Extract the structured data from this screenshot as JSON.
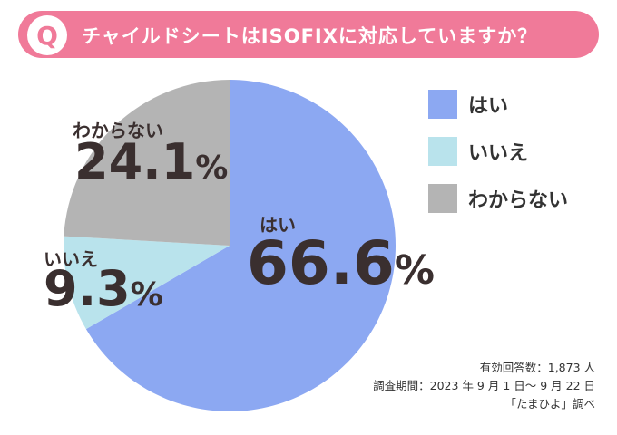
{
  "header": {
    "badge": "Q",
    "question": "チャイルドシートはISOFIXに対応していますか？"
  },
  "chart_data": {
    "type": "pie",
    "series": [
      {
        "name": "はい",
        "value": 66.6,
        "color": "#8ca8f2"
      },
      {
        "name": "いいえ",
        "value": 9.3,
        "color": "#b9e3ec"
      },
      {
        "name": "わからない",
        "value": 24.1,
        "color": "#b4b4b4"
      }
    ],
    "start_angle_deg": 0,
    "direction": "clockwise",
    "legend": "right",
    "value_suffix": "%"
  },
  "footer": {
    "responses": "有効回答数：1,873 人",
    "period": "調査期間：2023 年 9 月 1 日～ 9 月 22 日",
    "source": "「たまひよ」調べ"
  }
}
